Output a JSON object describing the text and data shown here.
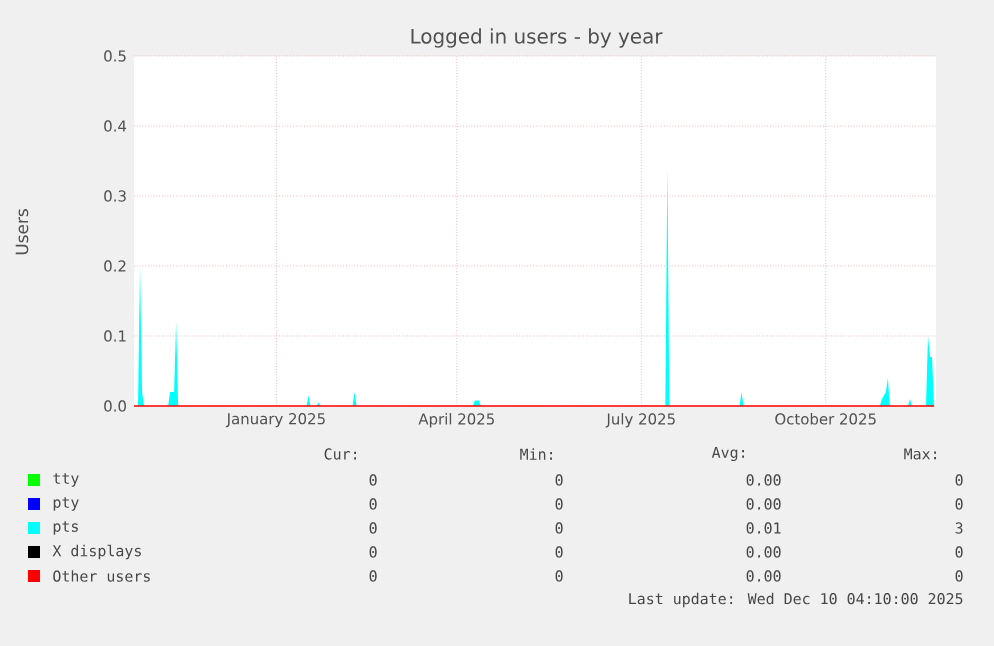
{
  "chart_data": {
    "type": "line",
    "title": "Logged in users - by year",
    "ylabel": "Users",
    "xlim": [
      "2024-11-06",
      "2025-12-11"
    ],
    "xticks": [
      {
        "value": "2025-01-16",
        "label": "January 2025"
      },
      {
        "value": "2025-04-16",
        "label": "April 2025"
      },
      {
        "value": "2025-07-17",
        "label": "July 2025"
      },
      {
        "value": "2025-10-17",
        "label": "October 2025"
      }
    ],
    "ylim": [
      0,
      0.5
    ],
    "yticks": [
      {
        "value": 0,
        "label": "0.0"
      },
      {
        "value": 0.1,
        "label": "0.1"
      },
      {
        "value": 0.2,
        "label": "0.2"
      },
      {
        "value": 0.3,
        "label": "0.3"
      },
      {
        "value": 0.4,
        "label": "0.4"
      },
      {
        "value": 0.5,
        "label": "0.5"
      }
    ],
    "grid": true,
    "legend": "bottom",
    "series": [
      {
        "name": "tty",
        "color": "#00ff00"
      },
      {
        "name": "pty",
        "color": "#0000ff"
      },
      {
        "name": "pts",
        "color": "#00ffff",
        "type": "area",
        "x": [
          "2024-11-08",
          "2024-11-09",
          "2024-11-10",
          "2024-11-11",
          "2024-11-23",
          "2024-11-24",
          "2024-11-26",
          "2024-11-27",
          "2024-11-28",
          "2025-01-31",
          "2025-02-01",
          "2025-02-02",
          "2025-02-05",
          "2025-02-06",
          "2025-02-07",
          "2025-02-23",
          "2025-02-24",
          "2025-02-25",
          "2025-04-24",
          "2025-04-25",
          "2025-04-27",
          "2025-04-28",
          "2025-07-29",
          "2025-07-30",
          "2025-07-31",
          "2025-09-04",
          "2025-09-05",
          "2025-09-06",
          "2025-11-13",
          "2025-11-14",
          "2025-11-16",
          "2025-11-17",
          "2025-11-18",
          "2025-11-27",
          "2025-11-28",
          "2025-11-29",
          "2025-12-06",
          "2025-12-07",
          "2025-12-08",
          "2025-12-09",
          "2025-12-10"
        ],
        "values": [
          0,
          0.2,
          0.02,
          0,
          0,
          0.02,
          0.02,
          0.12,
          0,
          0,
          0.015,
          0,
          0,
          0.005,
          0,
          0,
          0.02,
          0,
          0,
          0.008,
          0.008,
          0,
          0,
          0.34,
          0,
          0,
          0.02,
          0,
          0,
          0.01,
          0.02,
          0.04,
          0,
          0,
          0.01,
          0,
          0,
          0.1,
          0.07,
          0.07,
          0
        ]
      },
      {
        "name": "X displays",
        "color": "#000000"
      },
      {
        "name": "Other users",
        "color": "#ff0000",
        "x": [
          "2024-11-06",
          "2025-12-10"
        ],
        "values": [
          0,
          0
        ]
      }
    ],
    "annotations": [
      "Cur:",
      "Min:",
      "Avg:",
      "Max:",
      "0",
      "0",
      "0.00",
      "0",
      "0",
      "0",
      "0.00",
      "0",
      "0",
      "0",
      "0.01",
      "3",
      "0",
      "0",
      "0.00",
      "0",
      "0",
      "0",
      "0.00",
      "0",
      "Last update: Wed Dec 10 04:10:00 2025"
    ]
  }
}
